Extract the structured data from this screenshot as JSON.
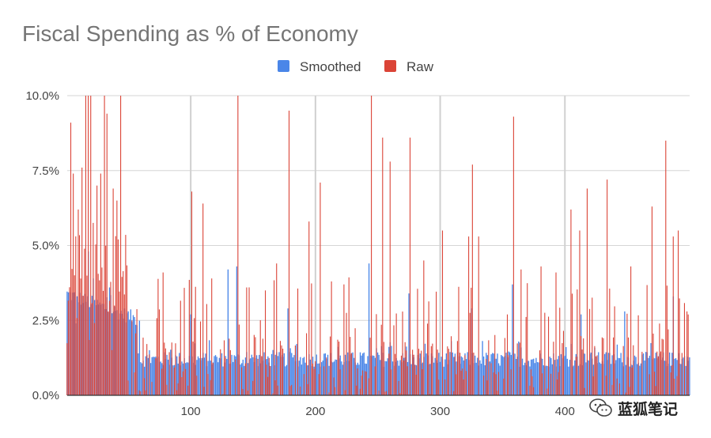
{
  "chart_data": {
    "type": "bar",
    "title": "Fiscal Spending as % of Economy",
    "legend": {
      "position": "top-center"
    },
    "grid": true,
    "xlim": [
      1,
      500
    ],
    "ylim": [
      0,
      10
    ],
    "x_ticks": [
      100,
      200,
      300,
      400
    ],
    "y_ticks": [
      "0.0%",
      "2.5%",
      "5.0%",
      "7.5%",
      "10.0%"
    ],
    "y_tick_values": [
      0,
      2.5,
      5,
      7.5,
      10
    ],
    "series": [
      {
        "name": "Smoothed",
        "color": "#4a86e8",
        "approx_level": 1.2,
        "peaks": [
          {
            "x": 8,
            "y": 2.4
          },
          {
            "x": 18,
            "y": 4.8
          },
          {
            "x": 22,
            "y": 3.9
          },
          {
            "x": 35,
            "y": 3.6
          },
          {
            "x": 58,
            "y": 1.4
          },
          {
            "x": 100,
            "y": 2.7
          },
          {
            "x": 130,
            "y": 4.2
          },
          {
            "x": 137,
            "y": 4.3
          },
          {
            "x": 178,
            "y": 2.9
          },
          {
            "x": 243,
            "y": 4.4
          },
          {
            "x": 275,
            "y": 3.4
          },
          {
            "x": 325,
            "y": 2.9
          },
          {
            "x": 358,
            "y": 3.7
          },
          {
            "x": 413,
            "y": 2.7
          },
          {
            "x": 448,
            "y": 2.8
          },
          {
            "x": 487,
            "y": 3.3
          }
        ]
      },
      {
        "name": "Raw",
        "color": "#db4437",
        "peaks": [
          {
            "x": 4,
            "y": 9.1
          },
          {
            "x": 6,
            "y": 7.4
          },
          {
            "x": 10,
            "y": 6.2
          },
          {
            "x": 13,
            "y": 7.6
          },
          {
            "x": 16,
            "y": 10.0
          },
          {
            "x": 18,
            "y": 10.0
          },
          {
            "x": 20,
            "y": 10.0
          },
          {
            "x": 25,
            "y": 7.0
          },
          {
            "x": 28,
            "y": 7.4
          },
          {
            "x": 31,
            "y": 10.0
          },
          {
            "x": 33,
            "y": 9.4
          },
          {
            "x": 38,
            "y": 6.9
          },
          {
            "x": 41,
            "y": 6.5
          },
          {
            "x": 44,
            "y": 10.0
          },
          {
            "x": 53,
            "y": 2.5
          },
          {
            "x": 78,
            "y": 4.1
          },
          {
            "x": 101,
            "y": 6.8
          },
          {
            "x": 110,
            "y": 6.4
          },
          {
            "x": 138,
            "y": 10.0
          },
          {
            "x": 145,
            "y": 3.6
          },
          {
            "x": 160,
            "y": 3.5
          },
          {
            "x": 169,
            "y": 4.4
          },
          {
            "x": 179,
            "y": 9.5
          },
          {
            "x": 195,
            "y": 5.8
          },
          {
            "x": 204,
            "y": 7.1
          },
          {
            "x": 213,
            "y": 3.8
          },
          {
            "x": 245,
            "y": 10.0
          },
          {
            "x": 254,
            "y": 8.6
          },
          {
            "x": 260,
            "y": 7.8
          },
          {
            "x": 276,
            "y": 8.6
          },
          {
            "x": 287,
            "y": 4.5
          },
          {
            "x": 302,
            "y": 5.5
          },
          {
            "x": 323,
            "y": 5.3
          },
          {
            "x": 326,
            "y": 7.7
          },
          {
            "x": 331,
            "y": 5.3
          },
          {
            "x": 359,
            "y": 9.3
          },
          {
            "x": 365,
            "y": 4.2
          },
          {
            "x": 381,
            "y": 4.3
          },
          {
            "x": 393,
            "y": 4.1
          },
          {
            "x": 405,
            "y": 6.2
          },
          {
            "x": 412,
            "y": 5.5
          },
          {
            "x": 418,
            "y": 6.9
          },
          {
            "x": 434,
            "y": 7.2
          },
          {
            "x": 453,
            "y": 4.3
          },
          {
            "x": 470,
            "y": 6.3
          },
          {
            "x": 481,
            "y": 8.5
          },
          {
            "x": 487,
            "y": 5.3
          },
          {
            "x": 491,
            "y": 5.5
          },
          {
            "x": 498,
            "y": 2.8
          }
        ]
      }
    ]
  },
  "watermark": {
    "icon": "wechat-icon",
    "text": "蓝狐笔记"
  }
}
